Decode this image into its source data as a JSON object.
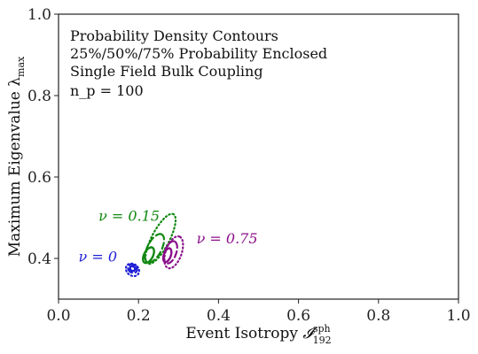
{
  "chart_data": {
    "type": "contour",
    "xlabel": "Event Isotropy",
    "xlabel_symbol": "𝓘",
    "xlabel_sup": "sph",
    "xlabel_sub": "192",
    "ylabel": "Maximum Eigenvalue λ",
    "ylabel_sub": "max",
    "xlim": [
      0.0,
      1.0
    ],
    "ylim": [
      0.3,
      1.0
    ],
    "xticks": [
      0.0,
      0.2,
      0.4,
      0.6,
      0.8,
      1.0
    ],
    "yticks": [
      0.4,
      0.6,
      0.8,
      1.0
    ],
    "xtick_labels": [
      "0.0",
      "0.2",
      "0.4",
      "0.6",
      "0.8",
      "1.0"
    ],
    "ytick_labels": [
      "0.4",
      "0.6",
      "0.8",
      "1.0"
    ],
    "grid": false,
    "annotation_lines": [
      "Probability Density Contours",
      "25%/50%/75% Probability Enclosed",
      "Single Field Bulk Coupling",
      "n_p = 100"
    ],
    "enclosed_levels": [
      "25%",
      "50%",
      "75%"
    ],
    "series": [
      {
        "label": "ν = 0",
        "color": "#1f1fd6",
        "label_pos": [
          0.05,
          0.405
        ],
        "contours": [
          {
            "level": "25%",
            "style": "solid",
            "cx": 0.185,
            "cy": 0.375,
            "rx": 0.01,
            "ry": 0.012,
            "angle_deg": 55
          },
          {
            "level": "50%",
            "style": "dashed",
            "cx": 0.185,
            "cy": 0.375,
            "rx": 0.018,
            "ry": 0.022,
            "angle_deg": 55
          },
          {
            "level": "75%",
            "style": "dotted",
            "cx": 0.185,
            "cy": 0.372,
            "rx": 0.026,
            "ry": 0.032,
            "angle_deg": 55
          }
        ]
      },
      {
        "label": "ν = 0.15",
        "color": "#118811",
        "label_pos": [
          0.1,
          0.505
        ],
        "contours": [
          {
            "level": "25%",
            "style": "solid",
            "cx": 0.225,
            "cy": 0.408,
            "rx": 0.038,
            "ry": 0.02,
            "angle_deg": 62
          },
          {
            "level": "50%",
            "style": "dashed",
            "cx": 0.24,
            "cy": 0.425,
            "rx": 0.07,
            "ry": 0.032,
            "angle_deg": 62
          },
          {
            "level": "75%",
            "style": "dotted",
            "cx": 0.255,
            "cy": 0.448,
            "rx": 0.125,
            "ry": 0.04,
            "angle_deg": 62
          }
        ]
      },
      {
        "label": "ν = 0.75",
        "color": "#8a0f8a",
        "label_pos": [
          0.345,
          0.45
        ],
        "contours": [
          {
            "level": "25%",
            "style": "solid",
            "cx": 0.272,
            "cy": 0.408,
            "rx": 0.032,
            "ry": 0.016,
            "angle_deg": 70
          },
          {
            "level": "50%",
            "style": "dashed",
            "cx": 0.28,
            "cy": 0.415,
            "rx": 0.052,
            "ry": 0.026,
            "angle_deg": 70
          },
          {
            "level": "75%",
            "style": "dotted",
            "cx": 0.288,
            "cy": 0.415,
            "rx": 0.075,
            "ry": 0.036,
            "angle_deg": 70
          }
        ]
      }
    ]
  }
}
